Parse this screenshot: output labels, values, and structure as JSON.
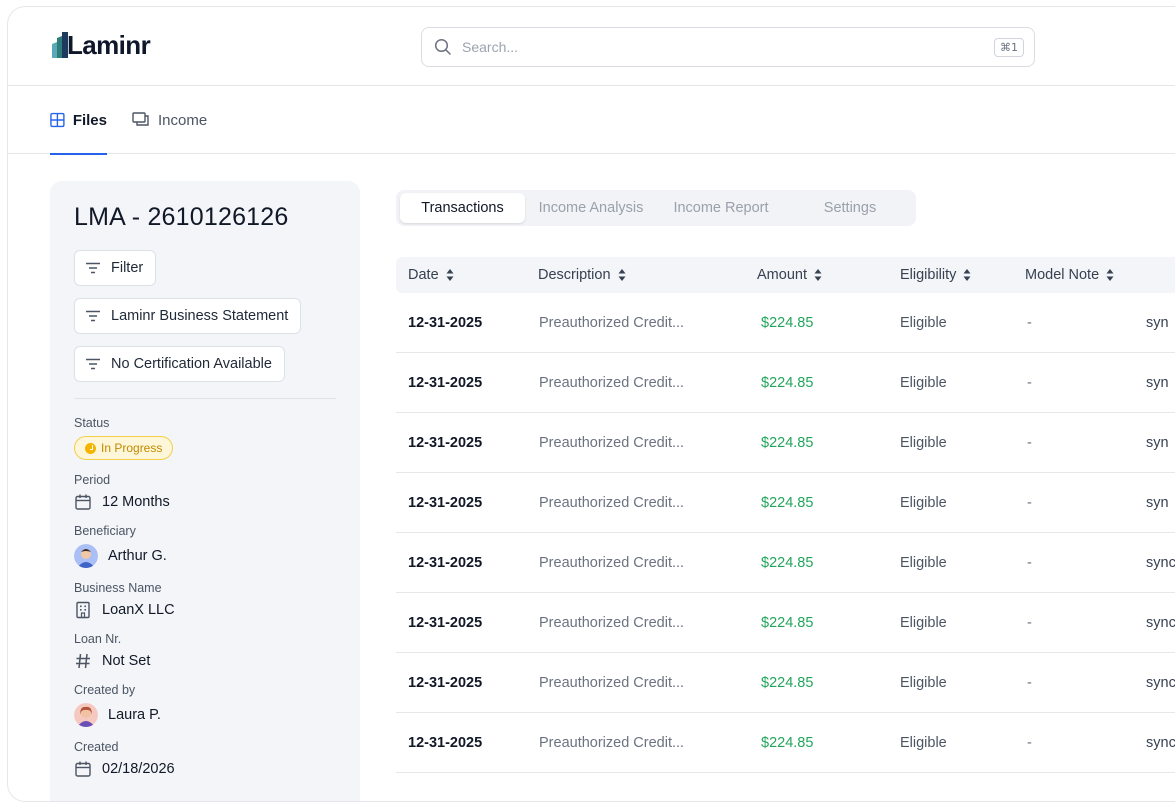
{
  "brand": {
    "name": "Laminr",
    "accent": "#2563eb",
    "logo_colors": [
      "#1e3a5f",
      "#2e7d7a",
      "#5aa9b8"
    ]
  },
  "search": {
    "placeholder": "Search...",
    "shortcut": "⌘1"
  },
  "nav": {
    "tabs": [
      {
        "label": "Files",
        "icon": "grid-icon",
        "active": true
      },
      {
        "label": "Income",
        "icon": "chat-icon",
        "active": false
      }
    ]
  },
  "file": {
    "title": "LMA - 2610126126",
    "filter_label": "Filter",
    "chips": [
      "Laminr Business Statement",
      "No Certification Available"
    ],
    "fields": {
      "status": {
        "label": "Status",
        "value": "In Progress",
        "color": "#f5b400"
      },
      "period": {
        "label": "Period",
        "value": "12 Months",
        "icon": "calendar-icon"
      },
      "beneficiary": {
        "label": "Beneficiary",
        "value": "Arthur G."
      },
      "business": {
        "label": "Business Name",
        "value": "LoanX LLC",
        "icon": "building-icon"
      },
      "loan": {
        "label": "Loan Nr.",
        "value": "Not Set",
        "icon": "hash-icon"
      },
      "created_by": {
        "label": "Created by",
        "value": "Laura P."
      },
      "created": {
        "label": "Created",
        "value": "02/18/2026",
        "icon": "calendar-icon"
      }
    }
  },
  "subtabs": [
    {
      "label": "Transactions",
      "active": true
    },
    {
      "label": "Income Analysis",
      "active": false
    },
    {
      "label": "Income Report",
      "active": false
    },
    {
      "label": "Settings",
      "active": false
    }
  ],
  "table": {
    "columns": [
      "Date",
      "Description",
      "Amount",
      "Eligibility",
      "Model Note"
    ],
    "rows": [
      {
        "date": "12-31-2025",
        "desc": "Preauthorized Credit...",
        "amount": "$224.85",
        "elig": "Eligible",
        "note": "-",
        "sync": "syn"
      },
      {
        "date": "12-31-2025",
        "desc": "Preauthorized Credit...",
        "amount": "$224.85",
        "elig": "Eligible",
        "note": "-",
        "sync": "syn"
      },
      {
        "date": "12-31-2025",
        "desc": "Preauthorized Credit...",
        "amount": "$224.85",
        "elig": "Eligible",
        "note": "-",
        "sync": "syn"
      },
      {
        "date": "12-31-2025",
        "desc": "Preauthorized Credit...",
        "amount": "$224.85",
        "elig": "Eligible",
        "note": "-",
        "sync": "syn"
      },
      {
        "date": "12-31-2025",
        "desc": "Preauthorized Credit...",
        "amount": "$224.85",
        "elig": "Eligible",
        "note": "-",
        "sync": "sync"
      },
      {
        "date": "12-31-2025",
        "desc": "Preauthorized Credit...",
        "amount": "$224.85",
        "elig": "Eligible",
        "note": "-",
        "sync": "sync"
      },
      {
        "date": "12-31-2025",
        "desc": "Preauthorized Credit...",
        "amount": "$224.85",
        "elig": "Eligible",
        "note": "-",
        "sync": "sync"
      },
      {
        "date": "12-31-2025",
        "desc": "Preauthorized Credit...",
        "amount": "$224.85",
        "elig": "Eligible",
        "note": "-",
        "sync": "sync"
      }
    ]
  }
}
